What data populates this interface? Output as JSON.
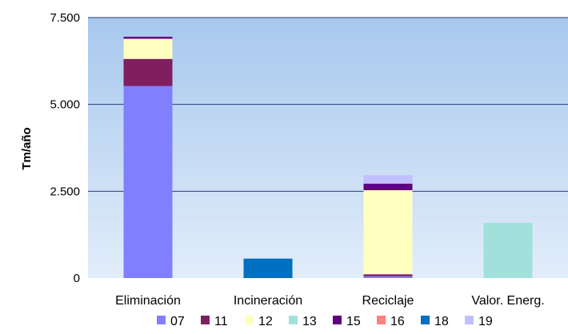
{
  "chart_data": {
    "type": "bar",
    "stacked": true,
    "title": "",
    "xlabel": "",
    "ylabel": "Tm/año",
    "ylim": [
      0,
      7500
    ],
    "y_ticks": [
      0,
      2500,
      5000,
      7500
    ],
    "y_tick_labels": [
      "0",
      "2.500",
      "5.000",
      "7.500"
    ],
    "grid": true,
    "legend_position": "bottom",
    "plot_background": "gradient #a7c8ee → #e2edfa",
    "categories": [
      "Eliminación",
      "Incineración",
      "Reciclaje",
      "Valor. Energ."
    ],
    "series": [
      {
        "name": "07",
        "color": "#8080ff",
        "values": [
          5530,
          0,
          50,
          0
        ]
      },
      {
        "name": "11",
        "color": "#7f1f5f",
        "values": [
          780,
          0,
          60,
          0
        ]
      },
      {
        "name": "12",
        "color": "#ffffc0",
        "values": [
          580,
          0,
          2420,
          0
        ]
      },
      {
        "name": "13",
        "color": "#a2e0dc",
        "values": [
          0,
          0,
          0,
          1590
        ]
      },
      {
        "name": "15",
        "color": "#600080",
        "values": [
          60,
          0,
          190,
          0
        ]
      },
      {
        "name": "16",
        "color": "#ff8080",
        "values": [
          0,
          0,
          0,
          0
        ]
      },
      {
        "name": "18",
        "color": "#0070c0",
        "values": [
          0,
          560,
          0,
          0
        ]
      },
      {
        "name": "19",
        "color": "#c0c0ff",
        "values": [
          20,
          0,
          240,
          0
        ]
      }
    ]
  }
}
